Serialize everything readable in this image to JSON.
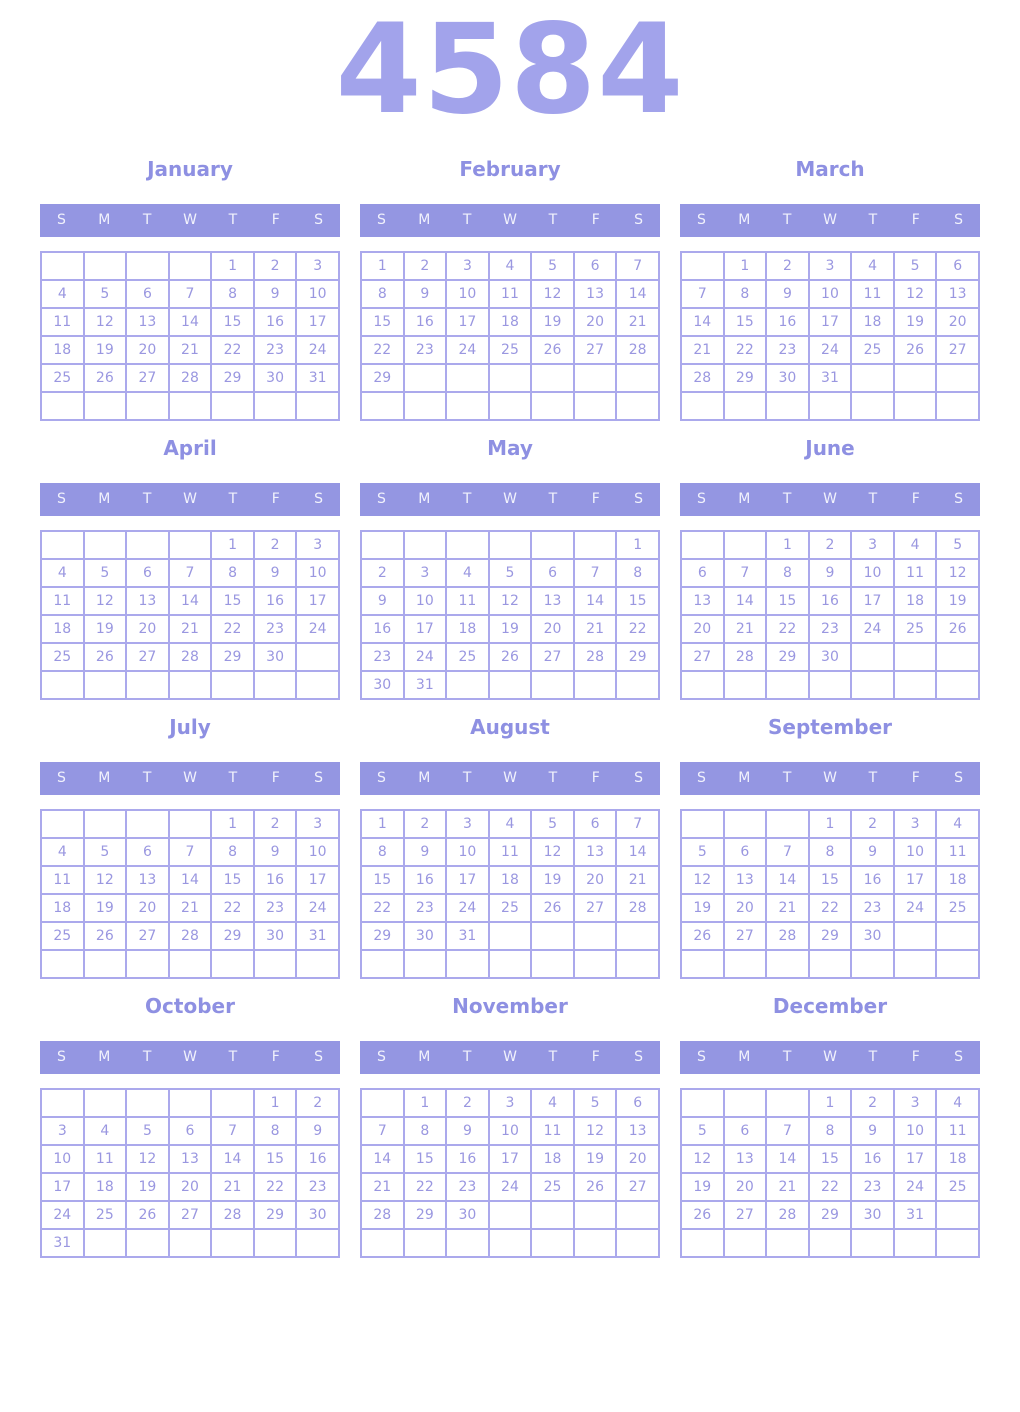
{
  "title": "4584",
  "weekday_headers": [
    "S",
    "M",
    "T",
    "W",
    "T",
    "F",
    "S"
  ],
  "colors": {
    "accent_bar": "#9496e2",
    "year_title": "#a2a3eb",
    "month_name": "#8e90e2",
    "day_text": "#9a97e0",
    "grid_border": "#aba9ec",
    "header_text": "#f1f2fc",
    "background": "#ffffff"
  },
  "months": [
    {
      "name": "January",
      "weeks": [
        [
          "",
          "",
          "",
          "",
          "1",
          "2",
          "3"
        ],
        [
          "4",
          "5",
          "6",
          "7",
          "8",
          "9",
          "10"
        ],
        [
          "11",
          "12",
          "13",
          "14",
          "15",
          "16",
          "17"
        ],
        [
          "18",
          "19",
          "20",
          "21",
          "22",
          "23",
          "24"
        ],
        [
          "25",
          "26",
          "27",
          "28",
          "29",
          "30",
          "31"
        ],
        [
          "",
          "",
          "",
          "",
          "",
          "",
          ""
        ]
      ]
    },
    {
      "name": "February",
      "weeks": [
        [
          "1",
          "2",
          "3",
          "4",
          "5",
          "6",
          "7"
        ],
        [
          "8",
          "9",
          "10",
          "11",
          "12",
          "13",
          "14"
        ],
        [
          "15",
          "16",
          "17",
          "18",
          "19",
          "20",
          "21"
        ],
        [
          "22",
          "23",
          "24",
          "25",
          "26",
          "27",
          "28"
        ],
        [
          "29",
          "",
          "",
          "",
          "",
          "",
          ""
        ],
        [
          "",
          "",
          "",
          "",
          "",
          "",
          ""
        ]
      ]
    },
    {
      "name": "March",
      "weeks": [
        [
          "",
          "1",
          "2",
          "3",
          "4",
          "5",
          "6"
        ],
        [
          "7",
          "8",
          "9",
          "10",
          "11",
          "12",
          "13"
        ],
        [
          "14",
          "15",
          "16",
          "17",
          "18",
          "19",
          "20"
        ],
        [
          "21",
          "22",
          "23",
          "24",
          "25",
          "26",
          "27"
        ],
        [
          "28",
          "29",
          "30",
          "31",
          "",
          "",
          ""
        ],
        [
          "",
          "",
          "",
          "",
          "",
          "",
          ""
        ]
      ]
    },
    {
      "name": "April",
      "weeks": [
        [
          "",
          "",
          "",
          "",
          "1",
          "2",
          "3"
        ],
        [
          "4",
          "5",
          "6",
          "7",
          "8",
          "9",
          "10"
        ],
        [
          "11",
          "12",
          "13",
          "14",
          "15",
          "16",
          "17"
        ],
        [
          "18",
          "19",
          "20",
          "21",
          "22",
          "23",
          "24"
        ],
        [
          "25",
          "26",
          "27",
          "28",
          "29",
          "30",
          ""
        ],
        [
          "",
          "",
          "",
          "",
          "",
          "",
          ""
        ]
      ]
    },
    {
      "name": "May",
      "weeks": [
        [
          "",
          "",
          "",
          "",
          "",
          "",
          "1"
        ],
        [
          "2",
          "3",
          "4",
          "5",
          "6",
          "7",
          "8"
        ],
        [
          "9",
          "10",
          "11",
          "12",
          "13",
          "14",
          "15"
        ],
        [
          "16",
          "17",
          "18",
          "19",
          "20",
          "21",
          "22"
        ],
        [
          "23",
          "24",
          "25",
          "26",
          "27",
          "28",
          "29"
        ],
        [
          "30",
          "31",
          "",
          "",
          "",
          "",
          ""
        ]
      ]
    },
    {
      "name": "June",
      "weeks": [
        [
          "",
          "",
          "1",
          "2",
          "3",
          "4",
          "5"
        ],
        [
          "6",
          "7",
          "8",
          "9",
          "10",
          "11",
          "12"
        ],
        [
          "13",
          "14",
          "15",
          "16",
          "17",
          "18",
          "19"
        ],
        [
          "20",
          "21",
          "22",
          "23",
          "24",
          "25",
          "26"
        ],
        [
          "27",
          "28",
          "29",
          "30",
          "",
          "",
          ""
        ],
        [
          "",
          "",
          "",
          "",
          "",
          "",
          ""
        ]
      ]
    },
    {
      "name": "July",
      "weeks": [
        [
          "",
          "",
          "",
          "",
          "1",
          "2",
          "3"
        ],
        [
          "4",
          "5",
          "6",
          "7",
          "8",
          "9",
          "10"
        ],
        [
          "11",
          "12",
          "13",
          "14",
          "15",
          "16",
          "17"
        ],
        [
          "18",
          "19",
          "20",
          "21",
          "22",
          "23",
          "24"
        ],
        [
          "25",
          "26",
          "27",
          "28",
          "29",
          "30",
          "31"
        ],
        [
          "",
          "",
          "",
          "",
          "",
          "",
          ""
        ]
      ]
    },
    {
      "name": "August",
      "weeks": [
        [
          "1",
          "2",
          "3",
          "4",
          "5",
          "6",
          "7"
        ],
        [
          "8",
          "9",
          "10",
          "11",
          "12",
          "13",
          "14"
        ],
        [
          "15",
          "16",
          "17",
          "18",
          "19",
          "20",
          "21"
        ],
        [
          "22",
          "23",
          "24",
          "25",
          "26",
          "27",
          "28"
        ],
        [
          "29",
          "30",
          "31",
          "",
          "",
          "",
          ""
        ],
        [
          "",
          "",
          "",
          "",
          "",
          "",
          ""
        ]
      ]
    },
    {
      "name": "September",
      "weeks": [
        [
          "",
          "",
          "",
          "1",
          "2",
          "3",
          "4"
        ],
        [
          "5",
          "6",
          "7",
          "8",
          "9",
          "10",
          "11"
        ],
        [
          "12",
          "13",
          "14",
          "15",
          "16",
          "17",
          "18"
        ],
        [
          "19",
          "20",
          "21",
          "22",
          "23",
          "24",
          "25"
        ],
        [
          "26",
          "27",
          "28",
          "29",
          "30",
          "",
          ""
        ],
        [
          "",
          "",
          "",
          "",
          "",
          "",
          ""
        ]
      ]
    },
    {
      "name": "October",
      "weeks": [
        [
          "",
          "",
          "",
          "",
          "",
          "1",
          "2"
        ],
        [
          "3",
          "4",
          "5",
          "6",
          "7",
          "8",
          "9"
        ],
        [
          "10",
          "11",
          "12",
          "13",
          "14",
          "15",
          "16"
        ],
        [
          "17",
          "18",
          "19",
          "20",
          "21",
          "22",
          "23"
        ],
        [
          "24",
          "25",
          "26",
          "27",
          "28",
          "29",
          "30"
        ],
        [
          "31",
          "",
          "",
          "",
          "",
          "",
          ""
        ]
      ]
    },
    {
      "name": "November",
      "weeks": [
        [
          "",
          "1",
          "2",
          "3",
          "4",
          "5",
          "6"
        ],
        [
          "7",
          "8",
          "9",
          "10",
          "11",
          "12",
          "13"
        ],
        [
          "14",
          "15",
          "16",
          "17",
          "18",
          "19",
          "20"
        ],
        [
          "21",
          "22",
          "23",
          "24",
          "25",
          "26",
          "27"
        ],
        [
          "28",
          "29",
          "30",
          "",
          "",
          "",
          ""
        ],
        [
          "",
          "",
          "",
          "",
          "",
          "",
          ""
        ]
      ]
    },
    {
      "name": "December",
      "weeks": [
        [
          "",
          "",
          "",
          "1",
          "2",
          "3",
          "4"
        ],
        [
          "5",
          "6",
          "7",
          "8",
          "9",
          "10",
          "11"
        ],
        [
          "12",
          "13",
          "14",
          "15",
          "16",
          "17",
          "18"
        ],
        [
          "19",
          "20",
          "21",
          "22",
          "23",
          "24",
          "25"
        ],
        [
          "26",
          "27",
          "28",
          "29",
          "30",
          "31",
          ""
        ],
        [
          "",
          "",
          "",
          "",
          "",
          "",
          ""
        ]
      ]
    }
  ]
}
